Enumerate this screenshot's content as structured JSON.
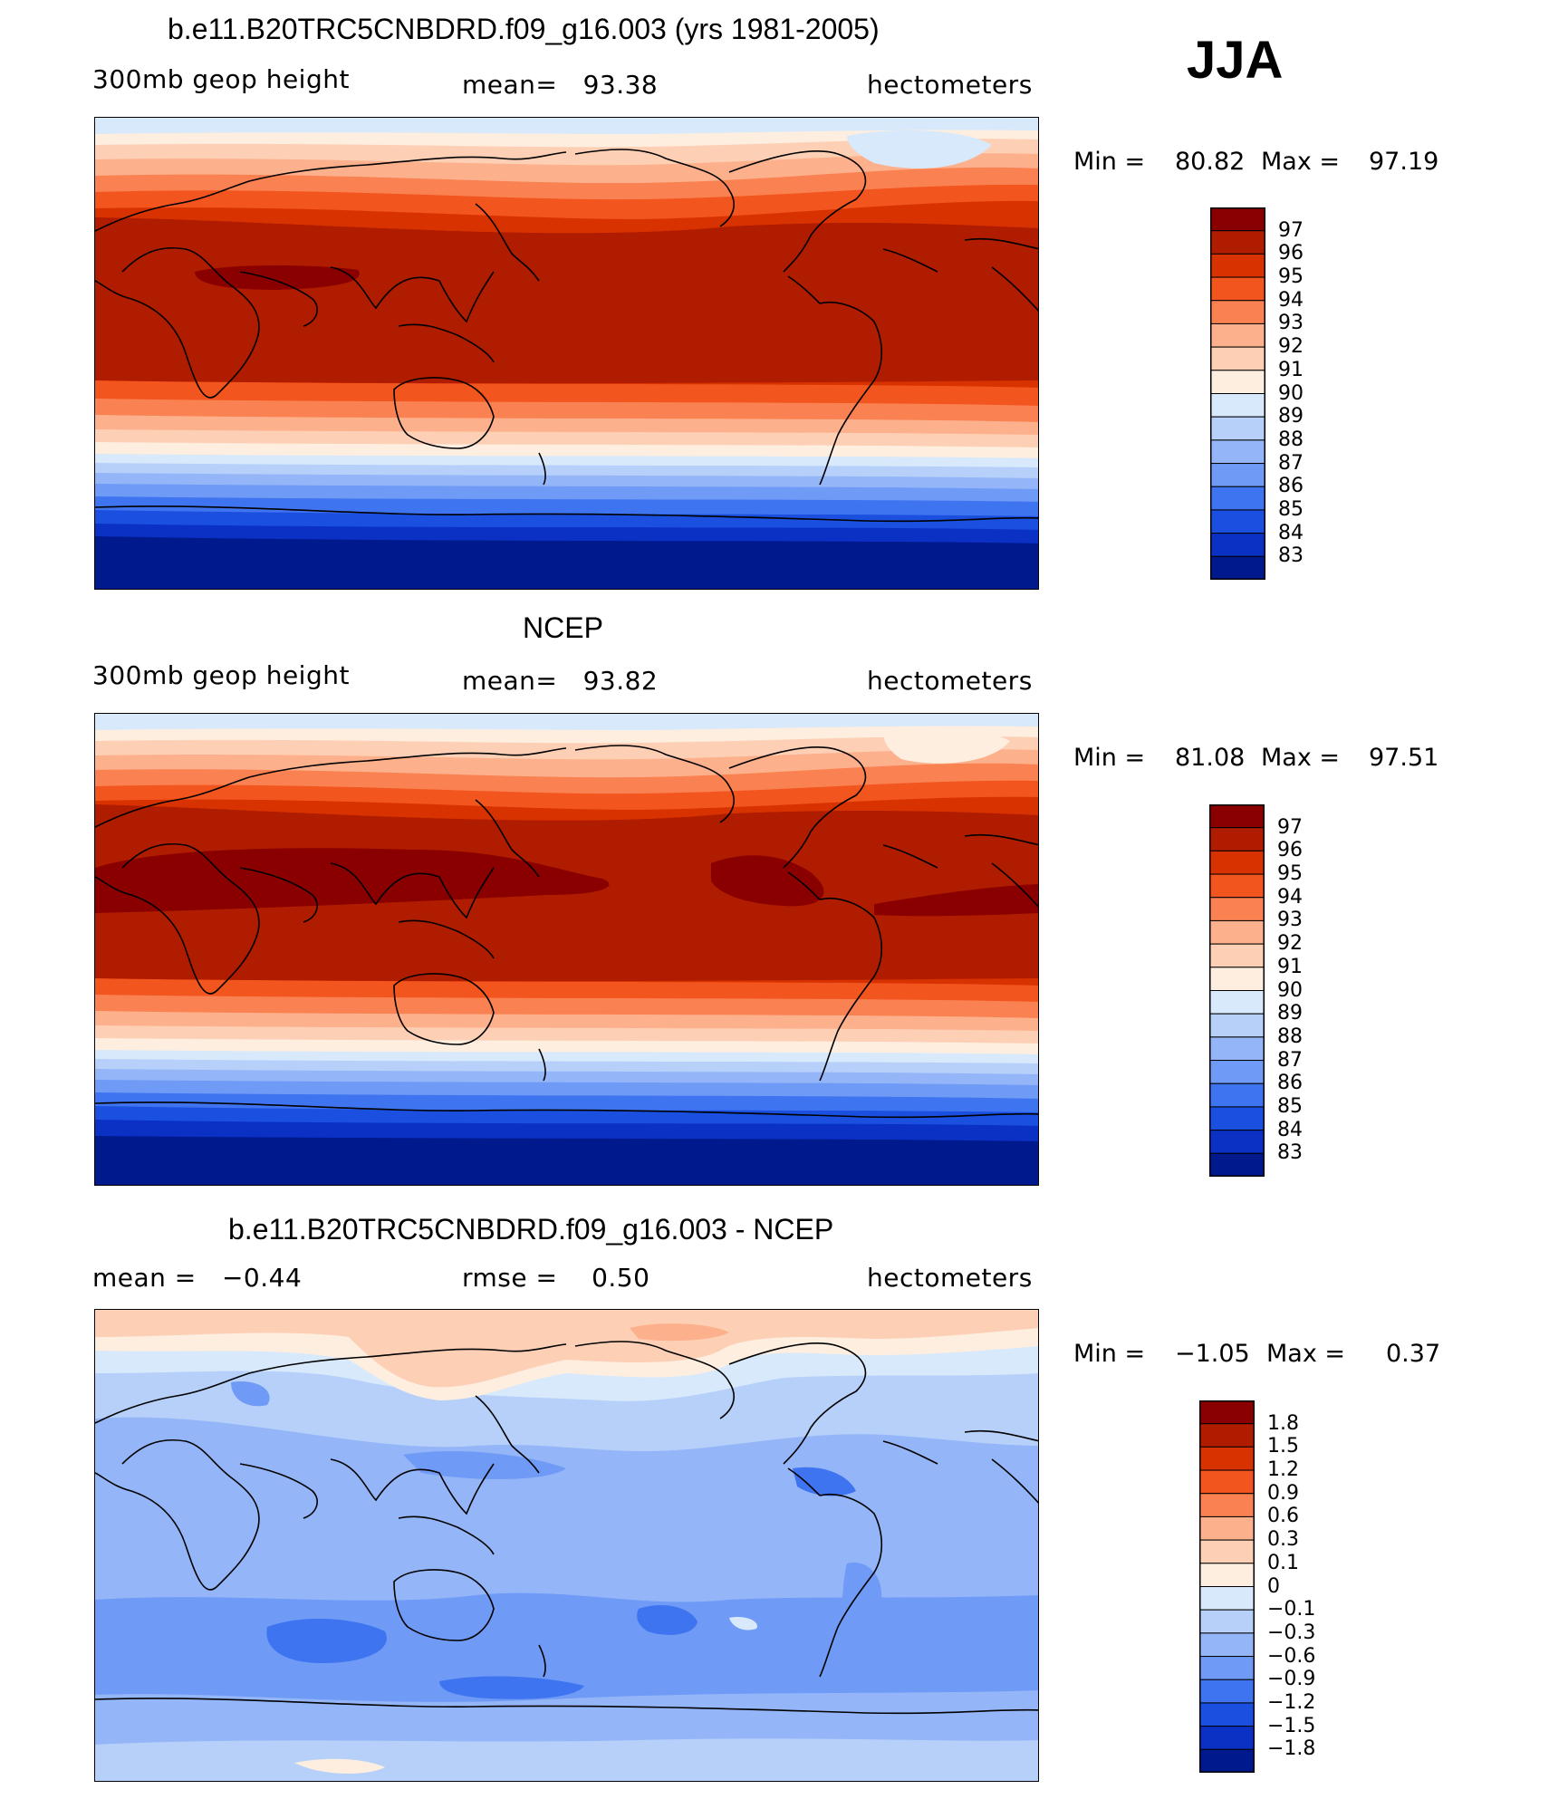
{
  "season": "JJA",
  "panels": [
    {
      "title": "b.e11.B20TRC5CNBDRD.f09_g16.003 (yrs 1981-2005)",
      "left_label": "300mb geop height",
      "center_label": "mean=   93.38",
      "units": "hectometers",
      "min_label": "Min =",
      "min_value": "80.82",
      "max_label": "Max =",
      "max_value": "97.19",
      "colorbar_labels": [
        "97",
        "96",
        "95",
        "94",
        "93",
        "92",
        "91",
        "90",
        "89",
        "88",
        "87",
        "86",
        "85",
        "84",
        "83"
      ]
    },
    {
      "title": "NCEP",
      "left_label": "300mb geop height",
      "center_label": "mean=   93.82",
      "units": "hectometers",
      "min_label": "Min =",
      "min_value": "81.08",
      "max_label": "Max =",
      "max_value": "97.51",
      "colorbar_labels": [
        "97",
        "96",
        "95",
        "94",
        "93",
        "92",
        "91",
        "90",
        "89",
        "88",
        "87",
        "86",
        "85",
        "84",
        "83"
      ]
    },
    {
      "title": "b.e11.B20TRC5CNBDRD.f09_g16.003 - NCEP",
      "left_label": "mean =   −0.44",
      "center_label": "rmse =    0.50",
      "units": "hectometers",
      "min_label": "Min =",
      "min_value": "−1.05",
      "max_label": "Max =",
      "max_value": "0.37",
      "colorbar_labels": [
        "1.8",
        "1.5",
        "1.2",
        "0.9",
        "0.6",
        "0.3",
        "0.1",
        "0",
        "−0.1",
        "−0.3",
        "−0.6",
        "−0.9",
        "−1.2",
        "−1.5",
        "−1.8"
      ]
    }
  ],
  "colors": {
    "seq": [
      "#8a0000",
      "#b01c00",
      "#d83200",
      "#f2551e",
      "#fa8152",
      "#fdb08c",
      "#fdd0b6",
      "#fdeee0",
      "#d7e9fb",
      "#b6d0fa",
      "#94b6f8",
      "#6f9af5",
      "#3f74f0",
      "#1a4fe0",
      "#0a30c4",
      "#00198c"
    ],
    "diff": [
      "#8a0000",
      "#b01c00",
      "#d83200",
      "#f2551e",
      "#fa8152",
      "#fdb08c",
      "#fdd0b6",
      "#fdeee0",
      "#d7e9fb",
      "#b6d0fa",
      "#94b6f8",
      "#6f9af5",
      "#3f74f0",
      "#1a4fe0",
      "#0a30c4",
      "#00198c"
    ]
  }
}
